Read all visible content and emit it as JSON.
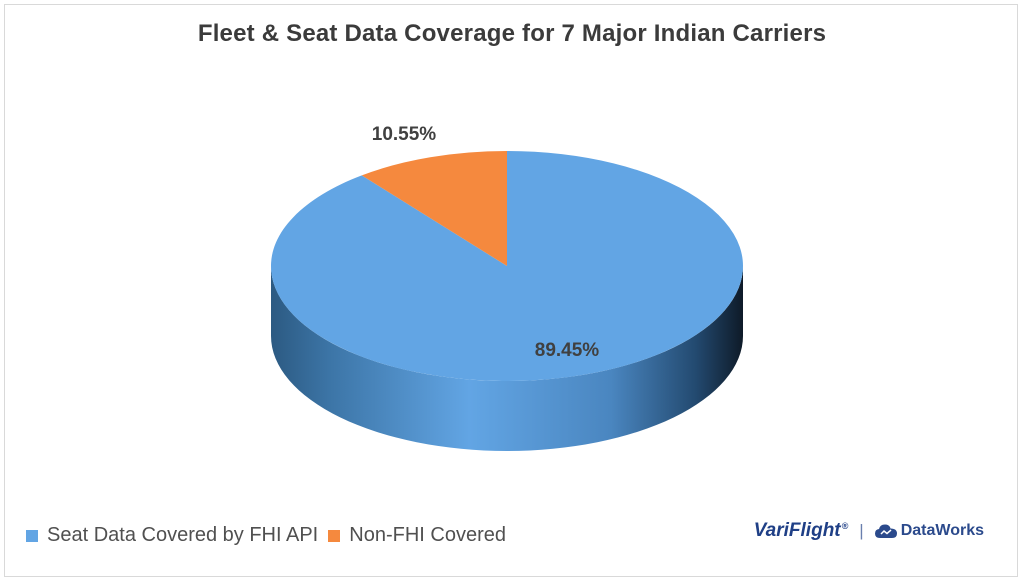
{
  "chart_data": {
    "type": "pie",
    "style": "3d",
    "title": "Fleet & Seat Data Coverage for 7 Major Indian Carriers",
    "categories": [
      "Seat Data Covered by FHI API",
      "Non-FHI Covered"
    ],
    "values": [
      89.45,
      10.55
    ],
    "data_labels": [
      "89.45%",
      "10.55%"
    ],
    "colors": [
      "#62a5e4",
      "#f5893e"
    ],
    "legend_position": "bottom-left"
  },
  "branding": {
    "variflight": "VariFlight",
    "registered": "®",
    "separator": "|",
    "dataworks": "DataWorks",
    "icon": "cloud-icon"
  }
}
